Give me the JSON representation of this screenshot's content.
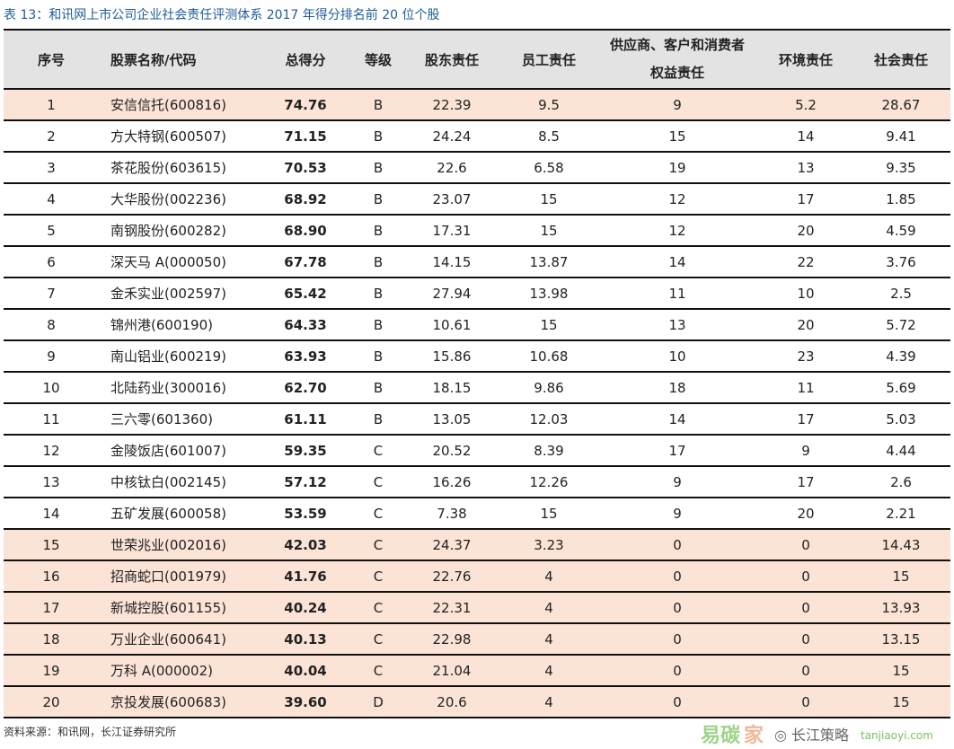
{
  "title": "表 13：和讯网上市公司企业社会责任评测体系 2017 年得分排名前 20 位个股",
  "columns": [
    "序号",
    "股票名称/代码",
    "总得分",
    "等级",
    "股东责任",
    "员工责任",
    [
      "供应商、客户和消费者",
      "权益责任"
    ],
    "环境责任",
    "社会责任"
  ],
  "highlight_color": "#fbe3d6",
  "header_color": "#e3e3e3",
  "rows": [
    {
      "no": "1",
      "name": "安信信托(600816)",
      "total": "74.76",
      "grade": "B",
      "shareholder": "22.39",
      "employee": "9.5",
      "supplier": "9",
      "environment": "5.2",
      "social": "28.67",
      "highlight": true
    },
    {
      "no": "2",
      "name": "方大特钢(600507)",
      "total": "71.15",
      "grade": "B",
      "shareholder": "24.24",
      "employee": "8.5",
      "supplier": "15",
      "environment": "14",
      "social": "9.41",
      "highlight": false
    },
    {
      "no": "3",
      "name": "茶花股份(603615)",
      "total": "70.53",
      "grade": "B",
      "shareholder": "22.6",
      "employee": "6.58",
      "supplier": "19",
      "environment": "13",
      "social": "9.35",
      "highlight": false
    },
    {
      "no": "4",
      "name": "大华股份(002236)",
      "total": "68.92",
      "grade": "B",
      "shareholder": "23.07",
      "employee": "15",
      "supplier": "12",
      "environment": "17",
      "social": "1.85",
      "highlight": false
    },
    {
      "no": "5",
      "name": "南钢股份(600282)",
      "total": "68.90",
      "grade": "B",
      "shareholder": "17.31",
      "employee": "15",
      "supplier": "12",
      "environment": "20",
      "social": "4.59",
      "highlight": false
    },
    {
      "no": "6",
      "name": "深天马 A(000050)",
      "total": "67.78",
      "grade": "B",
      "shareholder": "14.15",
      "employee": "13.87",
      "supplier": "14",
      "environment": "22",
      "social": "3.76",
      "highlight": false
    },
    {
      "no": "7",
      "name": "金禾实业(002597)",
      "total": "65.42",
      "grade": "B",
      "shareholder": "27.94",
      "employee": "13.98",
      "supplier": "11",
      "environment": "10",
      "social": "2.5",
      "highlight": false
    },
    {
      "no": "8",
      "name": "锦州港(600190)",
      "total": "64.33",
      "grade": "B",
      "shareholder": "10.61",
      "employee": "15",
      "supplier": "13",
      "environment": "20",
      "social": "5.72",
      "highlight": false
    },
    {
      "no": "9",
      "name": "南山铝业(600219)",
      "total": "63.93",
      "grade": "B",
      "shareholder": "15.86",
      "employee": "10.68",
      "supplier": "10",
      "environment": "23",
      "social": "4.39",
      "highlight": false
    },
    {
      "no": "10",
      "name": "北陆药业(300016)",
      "total": "62.70",
      "grade": "B",
      "shareholder": "18.15",
      "employee": "9.86",
      "supplier": "18",
      "environment": "11",
      "social": "5.69",
      "highlight": false
    },
    {
      "no": "11",
      "name": "三六零(601360)",
      "total": "61.11",
      "grade": "B",
      "shareholder": "13.05",
      "employee": "12.03",
      "supplier": "14",
      "environment": "17",
      "social": "5.03",
      "highlight": false
    },
    {
      "no": "12",
      "name": "金陵饭店(601007)",
      "total": "59.35",
      "grade": "C",
      "shareholder": "20.52",
      "employee": "8.39",
      "supplier": "17",
      "environment": "9",
      "social": "4.44",
      "highlight": false
    },
    {
      "no": "13",
      "name": "中核钛白(002145)",
      "total": "57.12",
      "grade": "C",
      "shareholder": "16.26",
      "employee": "12.26",
      "supplier": "9",
      "environment": "17",
      "social": "2.6",
      "highlight": false
    },
    {
      "no": "14",
      "name": "五矿发展(600058)",
      "total": "53.59",
      "grade": "C",
      "shareholder": "7.38",
      "employee": "15",
      "supplier": "9",
      "environment": "20",
      "social": "2.21",
      "highlight": false
    },
    {
      "no": "15",
      "name": "世荣兆业(002016)",
      "total": "42.03",
      "grade": "C",
      "shareholder": "24.37",
      "employee": "3.23",
      "supplier": "0",
      "environment": "0",
      "social": "14.43",
      "highlight": true
    },
    {
      "no": "16",
      "name": "招商蛇口(001979)",
      "total": "41.76",
      "grade": "C",
      "shareholder": "22.76",
      "employee": "4",
      "supplier": "0",
      "environment": "0",
      "social": "15",
      "highlight": true
    },
    {
      "no": "17",
      "name": "新城控股(601155)",
      "total": "40.24",
      "grade": "C",
      "shareholder": "22.31",
      "employee": "4",
      "supplier": "0",
      "environment": "0",
      "social": "13.93",
      "highlight": true
    },
    {
      "no": "18",
      "name": "万业企业(600641)",
      "total": "40.13",
      "grade": "C",
      "shareholder": "22.98",
      "employee": "4",
      "supplier": "0",
      "environment": "0",
      "social": "13.15",
      "highlight": true
    },
    {
      "no": "19",
      "name": "万科 A(000002)",
      "total": "40.04",
      "grade": "C",
      "shareholder": "21.04",
      "employee": "4",
      "supplier": "0",
      "environment": "0",
      "social": "15",
      "highlight": true
    },
    {
      "no": "20",
      "name": "京投发展(600683)",
      "total": "39.60",
      "grade": "D",
      "shareholder": "20.6",
      "employee": "4",
      "supplier": "0",
      "environment": "0",
      "social": "15",
      "highlight": true
    }
  ],
  "source": "资料来源：和讯网，长江证券研究所",
  "watermark": {
    "main": "易碳家",
    "sub": "长江策略",
    "url": "tanjiaoyi.com"
  }
}
